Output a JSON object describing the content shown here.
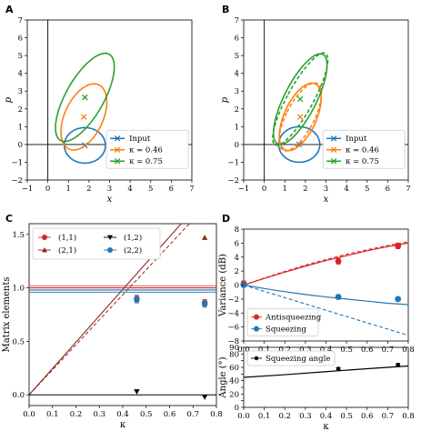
{
  "colors": {
    "blue": "#1f77b4",
    "orange": "#ff7f0e",
    "green": "#2ca02c",
    "red": "#d62728",
    "darkred": "#8c2a1c",
    "black": "#000000"
  },
  "chart_data": [
    {
      "panel": "A",
      "type": "scatter",
      "xlabel": "x",
      "ylabel": "p",
      "xlim": [
        -1,
        7
      ],
      "ylim": [
        -2,
        7
      ],
      "xticks": [
        "−1",
        "0",
        "1",
        "2",
        "3",
        "4",
        "5",
        "6",
        "7"
      ],
      "yticks": [
        "−2",
        "−1",
        "0",
        "1",
        "2",
        "3",
        "4",
        "5",
        "6",
        "7"
      ],
      "series": [
        {
          "name": "Input",
          "color": "blue",
          "center": [
            1.8,
            -0.05
          ],
          "ellipse": {
            "rx": 1.0,
            "ry": 1.0,
            "angle": 0
          }
        },
        {
          "name": "κ = 0.46",
          "color": "orange",
          "center": [
            1.75,
            1.55
          ],
          "ellipse": {
            "rx": 0.95,
            "ry": 1.95,
            "angle": 20
          }
        },
        {
          "name": "κ = 0.75",
          "color": "green",
          "center": [
            1.8,
            2.65
          ],
          "ellipse": {
            "rx": 0.95,
            "ry": 2.7,
            "angle": 25
          }
        }
      ],
      "legend": "lower-right"
    },
    {
      "panel": "B",
      "type": "scatter",
      "xlabel": "x",
      "ylabel": "p",
      "xlim": [
        -1,
        7
      ],
      "ylim": [
        -2,
        7
      ],
      "xticks": [
        "−1",
        "0",
        "1",
        "2",
        "3",
        "4",
        "5",
        "6",
        "7"
      ],
      "yticks": [
        "−2",
        "−1",
        "0",
        "1",
        "2",
        "3",
        "4",
        "5",
        "6",
        "7"
      ],
      "series": [
        {
          "name": "Input",
          "color": "blue",
          "center": [
            1.7,
            0.0
          ],
          "ellipse": {
            "rx": 1.0,
            "ry": 1.0,
            "angle": 0
          }
        },
        {
          "name": "κ = 0.46",
          "color": "orange",
          "center": [
            1.75,
            1.55
          ],
          "ellipse": {
            "rx": 0.8,
            "ry": 2.0,
            "angle": 20
          },
          "dashed": {
            "rx": 0.7,
            "ry": 2.05,
            "angle": 23
          }
        },
        {
          "name": "κ = 0.75",
          "color": "green",
          "center": [
            1.75,
            2.55
          ],
          "ellipse": {
            "rx": 0.8,
            "ry": 2.75,
            "angle": 23
          },
          "dashed": {
            "rx": 0.65,
            "ry": 2.85,
            "angle": 25
          }
        }
      ],
      "legend": "lower-right"
    },
    {
      "panel": "C",
      "type": "line",
      "xlabel": "κ",
      "ylabel": "Matrix elements",
      "xlim": [
        0,
        0.8
      ],
      "ylim": [
        -0.1,
        1.6
      ],
      "xticks": [
        "0.0",
        "0.1",
        "0.2",
        "0.3",
        "0.4",
        "0.5",
        "0.6",
        "0.7",
        "0.8"
      ],
      "yticks": [
        "0.0",
        "0.5",
        "1.0",
        "1.5"
      ],
      "series": [
        {
          "name": "(1,1)",
          "color": "red",
          "marker": "circle",
          "x": [
            0.46,
            0.75
          ],
          "y": [
            0.9,
            0.86
          ],
          "err": [
            0.03,
            0.03
          ],
          "line": [
            [
              0,
              1.0
            ],
            [
              0.8,
              1.0
            ]
          ]
        },
        {
          "name": "(2,1)",
          "color": "darkred",
          "marker": "triangle-up",
          "x": [
            0.46,
            0.75
          ],
          "y": [
            0.9,
            1.47
          ],
          "line": [
            [
              0,
              0.0
            ],
            [
              0.8,
              1.97
            ]
          ],
          "dashed": [
            [
              0,
              0.0
            ],
            [
              0.8,
              1.87
            ]
          ]
        },
        {
          "name": "(1,2)",
          "color": "black",
          "marker": "triangle-down",
          "x": [
            0.46,
            0.75
          ],
          "y": [
            0.03,
            -0.02
          ],
          "line": [
            [
              0,
              0.0
            ],
            [
              0.8,
              0.0
            ]
          ]
        },
        {
          "name": "(2,2)",
          "color": "blue",
          "marker": "circle",
          "x": [
            0.46,
            0.75
          ],
          "y": [
            0.89,
            0.85
          ],
          "err": [
            0.03,
            0.03
          ],
          "line": [
            [
              0,
              0.98
            ],
            [
              0.8,
              0.98
            ]
          ]
        }
      ],
      "legend": "upper-left"
    },
    {
      "panel": "D",
      "type": "line",
      "xlabel": "",
      "ylabel": "Variance (dB)",
      "xlim": [
        0,
        0.8
      ],
      "ylim": [
        -8,
        8
      ],
      "xticks": [
        "0.0",
        "0.1",
        "0.2",
        "0.3",
        "0.4",
        "0.5",
        "0.6",
        "0.7",
        "0.8"
      ],
      "yticks": [
        "−8",
        "−6",
        "−4",
        "−2",
        "0",
        "2",
        "4",
        "6",
        "8"
      ],
      "series": [
        {
          "name": "Antisqueezing",
          "color": "red",
          "marker": "circle",
          "x": [
            0.0,
            0.46,
            0.75
          ],
          "y": [
            0.2,
            3.4,
            5.6
          ],
          "err": [
            0.4,
            0.4,
            0.4
          ],
          "curve": [
            [
              0,
              0
            ],
            [
              0.1,
              0.95
            ],
            [
              0.2,
              1.85
            ],
            [
              0.3,
              2.7
            ],
            [
              0.4,
              3.5
            ],
            [
              0.5,
              4.2
            ],
            [
              0.6,
              4.9
            ],
            [
              0.7,
              5.5
            ],
            [
              0.8,
              6.0
            ]
          ],
          "dashed": [
            [
              0,
              0
            ],
            [
              0.1,
              1.0
            ],
            [
              0.2,
              1.95
            ],
            [
              0.3,
              2.85
            ],
            [
              0.4,
              3.65
            ],
            [
              0.5,
              4.4
            ],
            [
              0.6,
              5.05
            ],
            [
              0.7,
              5.65
            ],
            [
              0.8,
              6.2
            ]
          ]
        },
        {
          "name": "Squeezing",
          "color": "blue",
          "marker": "circle",
          "x": [
            0.0,
            0.46,
            0.75
          ],
          "y": [
            0.0,
            -1.7,
            -2.0
          ],
          "err": [
            0.3,
            0.3,
            0.3
          ],
          "curve": [
            [
              0,
              0
            ],
            [
              0.1,
              -0.5
            ],
            [
              0.2,
              -0.95
            ],
            [
              0.3,
              -1.35
            ],
            [
              0.4,
              -1.7
            ],
            [
              0.5,
              -2.0
            ],
            [
              0.6,
              -2.3
            ],
            [
              0.7,
              -2.6
            ],
            [
              0.8,
              -2.8
            ]
          ],
          "dashed": [
            [
              0,
              0
            ],
            [
              0.8,
              -7.2
            ]
          ]
        }
      ],
      "legend": "lower-left"
    },
    {
      "panel": "D-lower",
      "type": "line",
      "xlabel": "κ",
      "ylabel": "Angle (°)",
      "xlim": [
        0,
        0.8
      ],
      "ylim": [
        0,
        90
      ],
      "xticks": [
        "0.0",
        "0.1",
        "0.2",
        "0.3",
        "0.4",
        "0.5",
        "0.6",
        "0.7",
        "0.8"
      ],
      "yticks": [
        "0",
        "10",
        "20",
        "30",
        "40",
        "50",
        "60",
        "70",
        "80",
        "90"
      ],
      "series": [
        {
          "name": "Squeezing angle",
          "color": "black",
          "marker": "circle",
          "x": [
            0.46,
            0.75
          ],
          "y": [
            58,
            64
          ],
          "err": [
            1.5,
            1.5
          ],
          "curve": [
            [
              0,
              45
            ],
            [
              0.2,
              49
            ],
            [
              0.4,
              53.5
            ],
            [
              0.6,
              58
            ],
            [
              0.8,
              62
            ]
          ]
        }
      ],
      "legend": "upper-left"
    }
  ]
}
